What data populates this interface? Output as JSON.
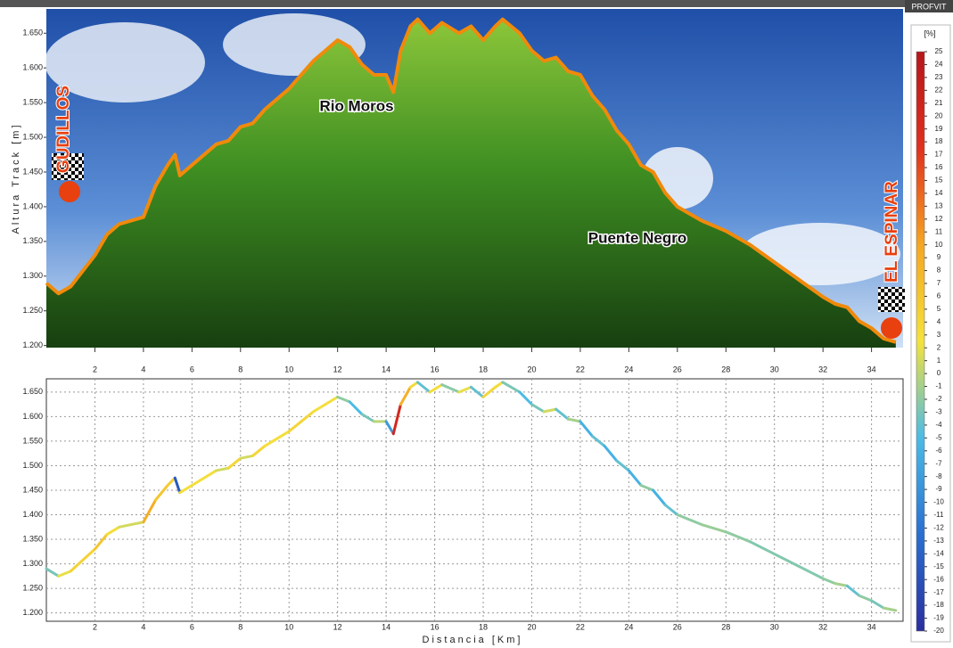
{
  "badge": "PROFVIT",
  "chart_data": [
    {
      "type": "area",
      "ylabel": "Altura Track [m]",
      "annotations": [
        "Rio Moros",
        "Puente Negro"
      ],
      "start": "GUDILLOS",
      "end": "EL ESPINAR",
      "color": "#f08a0b",
      "x": [
        0,
        0.5,
        1,
        2,
        2.5,
        3,
        3.5,
        4,
        4.5,
        5,
        5.3,
        5.5,
        6,
        7,
        7.5,
        8,
        8.5,
        9,
        10,
        10.5,
        11,
        11.5,
        12,
        12.5,
        13,
        13.5,
        14,
        14.3,
        14.6,
        15,
        15.3,
        15.8,
        16.3,
        17,
        17.5,
        18,
        18.5,
        18.8,
        19.5,
        20,
        20.5,
        21,
        21.5,
        22,
        22.5,
        23,
        23.5,
        24,
        24.5,
        25,
        25.5,
        26,
        27,
        28,
        29,
        30,
        31,
        32,
        32.5,
        33,
        33.5,
        34,
        34.5,
        35
      ],
      "values": [
        1290,
        1275,
        1285,
        1330,
        1360,
        1375,
        1380,
        1385,
        1430,
        1460,
        1475,
        1445,
        1460,
        1490,
        1495,
        1515,
        1520,
        1540,
        1570,
        1590,
        1610,
        1625,
        1640,
        1630,
        1605,
        1590,
        1590,
        1565,
        1625,
        1660,
        1670,
        1650,
        1665,
        1650,
        1660,
        1640,
        1660,
        1670,
        1650,
        1625,
        1610,
        1615,
        1595,
        1590,
        1560,
        1540,
        1510,
        1490,
        1460,
        1450,
        1420,
        1400,
        1380,
        1365,
        1345,
        1320,
        1295,
        1270,
        1260,
        1255,
        1235,
        1225,
        1210,
        1205
      ],
      "xlim": [
        0,
        35.3
      ],
      "ylim": [
        1197,
        1685
      ],
      "xticks": [
        2,
        4,
        6,
        8,
        10,
        12,
        14,
        16,
        18,
        20,
        22,
        24,
        26,
        28,
        30,
        32,
        34
      ],
      "yticks": [
        {
          "value": 1200,
          "label": "1.200"
        },
        {
          "value": 1250,
          "label": "1.250"
        },
        {
          "value": 1300,
          "label": "1.300"
        },
        {
          "value": 1350,
          "label": "1.350"
        },
        {
          "value": 1400,
          "label": "1.400"
        },
        {
          "value": 1450,
          "label": "1.450"
        },
        {
          "value": 1500,
          "label": "1.500"
        },
        {
          "value": 1550,
          "label": "1.550"
        },
        {
          "value": 1600,
          "label": "1.600"
        },
        {
          "value": 1650,
          "label": "1.650"
        }
      ]
    },
    {
      "type": "slope-line",
      "xlabel": "Distancia [Km]",
      "grid": true,
      "x": [
        0,
        0.5,
        1,
        2,
        2.5,
        3,
        3.5,
        4,
        4.5,
        5,
        5.3,
        5.5,
        6,
        7,
        7.5,
        8,
        8.5,
        9,
        10,
        10.5,
        11,
        11.5,
        12,
        12.5,
        13,
        13.5,
        14,
        14.3,
        14.6,
        15,
        15.3,
        15.8,
        16.3,
        17,
        17.5,
        18,
        18.5,
        18.8,
        19.5,
        20,
        20.5,
        21,
        21.5,
        22,
        22.5,
        23,
        23.5,
        24,
        24.5,
        25,
        25.5,
        26,
        27,
        28,
        29,
        30,
        31,
        32,
        32.5,
        33,
        33.5,
        34,
        34.5,
        35
      ],
      "values": [
        1290,
        1275,
        1285,
        1330,
        1360,
        1375,
        1380,
        1385,
        1430,
        1460,
        1475,
        1445,
        1460,
        1490,
        1495,
        1515,
        1520,
        1540,
        1570,
        1590,
        1610,
        1625,
        1640,
        1630,
        1605,
        1590,
        1590,
        1565,
        1625,
        1660,
        1670,
        1650,
        1665,
        1650,
        1660,
        1640,
        1660,
        1670,
        1650,
        1625,
        1610,
        1615,
        1595,
        1590,
        1560,
        1540,
        1510,
        1490,
        1460,
        1450,
        1420,
        1400,
        1380,
        1365,
        1345,
        1320,
        1295,
        1270,
        1260,
        1255,
        1235,
        1225,
        1210,
        1205
      ],
      "xlim": [
        0,
        35.3
      ],
      "ylim": [
        1183,
        1677
      ],
      "xticks": [
        2,
        4,
        6,
        8,
        10,
        12,
        14,
        16,
        18,
        20,
        22,
        24,
        26,
        28,
        30,
        32,
        34
      ],
      "yticks": [
        {
          "value": 1200,
          "label": "1.200"
        },
        {
          "value": 1250,
          "label": "1.250"
        },
        {
          "value": 1300,
          "label": "1.300"
        },
        {
          "value": 1350,
          "label": "1.350"
        },
        {
          "value": 1400,
          "label": "1.400"
        },
        {
          "value": 1450,
          "label": "1.450"
        },
        {
          "value": 1500,
          "label": "1.500"
        },
        {
          "value": 1550,
          "label": "1.550"
        },
        {
          "value": 1600,
          "label": "1.600"
        },
        {
          "value": 1650,
          "label": "1.650"
        }
      ],
      "colorbar": {
        "title": "[%]",
        "lim": [
          -20,
          25
        ],
        "ticks": [
          25,
          24,
          23,
          22,
          21,
          20,
          19,
          18,
          17,
          16,
          15,
          14,
          13,
          12,
          11,
          10,
          9,
          8,
          7,
          6,
          5,
          4,
          3,
          2,
          1,
          0,
          -1,
          -2,
          -3,
          -4,
          -5,
          -6,
          -7,
          -8,
          -9,
          -10,
          -11,
          -12,
          -13,
          -14,
          -15,
          -16,
          -17,
          -18,
          -19,
          -20
        ],
        "colors": [
          "#2b2f9e",
          "#2a6fd0",
          "#4bbbe6",
          "#f4e23c",
          "#f5a623",
          "#e0301e",
          "#b5171b"
        ]
      }
    }
  ]
}
